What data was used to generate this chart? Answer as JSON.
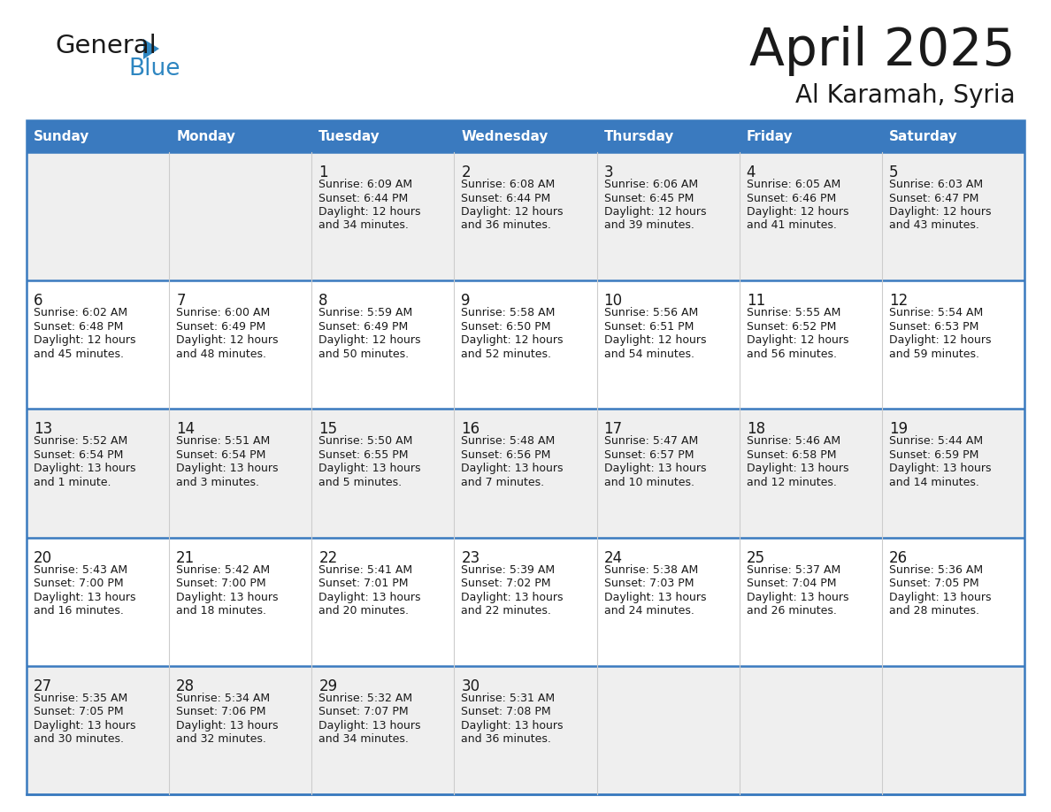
{
  "title": "April 2025",
  "subtitle": "Al Karamah, Syria",
  "header_bg": "#3a7abf",
  "header_text": "#ffffff",
  "row_bg_light": "#efefef",
  "row_bg_white": "#ffffff",
  "separator_color": "#3a7abf",
  "text_color": "#1a1a1a",
  "days_of_week": [
    "Sunday",
    "Monday",
    "Tuesday",
    "Wednesday",
    "Thursday",
    "Friday",
    "Saturday"
  ],
  "logo_text1": "General",
  "logo_text2": "Blue",
  "logo_color1": "#1a1a1a",
  "logo_color2": "#2e86c1",
  "triangle_color": "#2e86c1",
  "calendar_data": [
    [
      {
        "day": "",
        "lines": []
      },
      {
        "day": "",
        "lines": []
      },
      {
        "day": "1",
        "lines": [
          "Sunrise: 6:09 AM",
          "Sunset: 6:44 PM",
          "Daylight: 12 hours",
          "and 34 minutes."
        ]
      },
      {
        "day": "2",
        "lines": [
          "Sunrise: 6:08 AM",
          "Sunset: 6:44 PM",
          "Daylight: 12 hours",
          "and 36 minutes."
        ]
      },
      {
        "day": "3",
        "lines": [
          "Sunrise: 6:06 AM",
          "Sunset: 6:45 PM",
          "Daylight: 12 hours",
          "and 39 minutes."
        ]
      },
      {
        "day": "4",
        "lines": [
          "Sunrise: 6:05 AM",
          "Sunset: 6:46 PM",
          "Daylight: 12 hours",
          "and 41 minutes."
        ]
      },
      {
        "day": "5",
        "lines": [
          "Sunrise: 6:03 AM",
          "Sunset: 6:47 PM",
          "Daylight: 12 hours",
          "and 43 minutes."
        ]
      }
    ],
    [
      {
        "day": "6",
        "lines": [
          "Sunrise: 6:02 AM",
          "Sunset: 6:48 PM",
          "Daylight: 12 hours",
          "and 45 minutes."
        ]
      },
      {
        "day": "7",
        "lines": [
          "Sunrise: 6:00 AM",
          "Sunset: 6:49 PM",
          "Daylight: 12 hours",
          "and 48 minutes."
        ]
      },
      {
        "day": "8",
        "lines": [
          "Sunrise: 5:59 AM",
          "Sunset: 6:49 PM",
          "Daylight: 12 hours",
          "and 50 minutes."
        ]
      },
      {
        "day": "9",
        "lines": [
          "Sunrise: 5:58 AM",
          "Sunset: 6:50 PM",
          "Daylight: 12 hours",
          "and 52 minutes."
        ]
      },
      {
        "day": "10",
        "lines": [
          "Sunrise: 5:56 AM",
          "Sunset: 6:51 PM",
          "Daylight: 12 hours",
          "and 54 minutes."
        ]
      },
      {
        "day": "11",
        "lines": [
          "Sunrise: 5:55 AM",
          "Sunset: 6:52 PM",
          "Daylight: 12 hours",
          "and 56 minutes."
        ]
      },
      {
        "day": "12",
        "lines": [
          "Sunrise: 5:54 AM",
          "Sunset: 6:53 PM",
          "Daylight: 12 hours",
          "and 59 minutes."
        ]
      }
    ],
    [
      {
        "day": "13",
        "lines": [
          "Sunrise: 5:52 AM",
          "Sunset: 6:54 PM",
          "Daylight: 13 hours",
          "and 1 minute."
        ]
      },
      {
        "day": "14",
        "lines": [
          "Sunrise: 5:51 AM",
          "Sunset: 6:54 PM",
          "Daylight: 13 hours",
          "and 3 minutes."
        ]
      },
      {
        "day": "15",
        "lines": [
          "Sunrise: 5:50 AM",
          "Sunset: 6:55 PM",
          "Daylight: 13 hours",
          "and 5 minutes."
        ]
      },
      {
        "day": "16",
        "lines": [
          "Sunrise: 5:48 AM",
          "Sunset: 6:56 PM",
          "Daylight: 13 hours",
          "and 7 minutes."
        ]
      },
      {
        "day": "17",
        "lines": [
          "Sunrise: 5:47 AM",
          "Sunset: 6:57 PM",
          "Daylight: 13 hours",
          "and 10 minutes."
        ]
      },
      {
        "day": "18",
        "lines": [
          "Sunrise: 5:46 AM",
          "Sunset: 6:58 PM",
          "Daylight: 13 hours",
          "and 12 minutes."
        ]
      },
      {
        "day": "19",
        "lines": [
          "Sunrise: 5:44 AM",
          "Sunset: 6:59 PM",
          "Daylight: 13 hours",
          "and 14 minutes."
        ]
      }
    ],
    [
      {
        "day": "20",
        "lines": [
          "Sunrise: 5:43 AM",
          "Sunset: 7:00 PM",
          "Daylight: 13 hours",
          "and 16 minutes."
        ]
      },
      {
        "day": "21",
        "lines": [
          "Sunrise: 5:42 AM",
          "Sunset: 7:00 PM",
          "Daylight: 13 hours",
          "and 18 minutes."
        ]
      },
      {
        "day": "22",
        "lines": [
          "Sunrise: 5:41 AM",
          "Sunset: 7:01 PM",
          "Daylight: 13 hours",
          "and 20 minutes."
        ]
      },
      {
        "day": "23",
        "lines": [
          "Sunrise: 5:39 AM",
          "Sunset: 7:02 PM",
          "Daylight: 13 hours",
          "and 22 minutes."
        ]
      },
      {
        "day": "24",
        "lines": [
          "Sunrise: 5:38 AM",
          "Sunset: 7:03 PM",
          "Daylight: 13 hours",
          "and 24 minutes."
        ]
      },
      {
        "day": "25",
        "lines": [
          "Sunrise: 5:37 AM",
          "Sunset: 7:04 PM",
          "Daylight: 13 hours",
          "and 26 minutes."
        ]
      },
      {
        "day": "26",
        "lines": [
          "Sunrise: 5:36 AM",
          "Sunset: 7:05 PM",
          "Daylight: 13 hours",
          "and 28 minutes."
        ]
      }
    ],
    [
      {
        "day": "27",
        "lines": [
          "Sunrise: 5:35 AM",
          "Sunset: 7:05 PM",
          "Daylight: 13 hours",
          "and 30 minutes."
        ]
      },
      {
        "day": "28",
        "lines": [
          "Sunrise: 5:34 AM",
          "Sunset: 7:06 PM",
          "Daylight: 13 hours",
          "and 32 minutes."
        ]
      },
      {
        "day": "29",
        "lines": [
          "Sunrise: 5:32 AM",
          "Sunset: 7:07 PM",
          "Daylight: 13 hours",
          "and 34 minutes."
        ]
      },
      {
        "day": "30",
        "lines": [
          "Sunrise: 5:31 AM",
          "Sunset: 7:08 PM",
          "Daylight: 13 hours",
          "and 36 minutes."
        ]
      },
      {
        "day": "",
        "lines": []
      },
      {
        "day": "",
        "lines": []
      },
      {
        "day": "",
        "lines": []
      }
    ]
  ]
}
